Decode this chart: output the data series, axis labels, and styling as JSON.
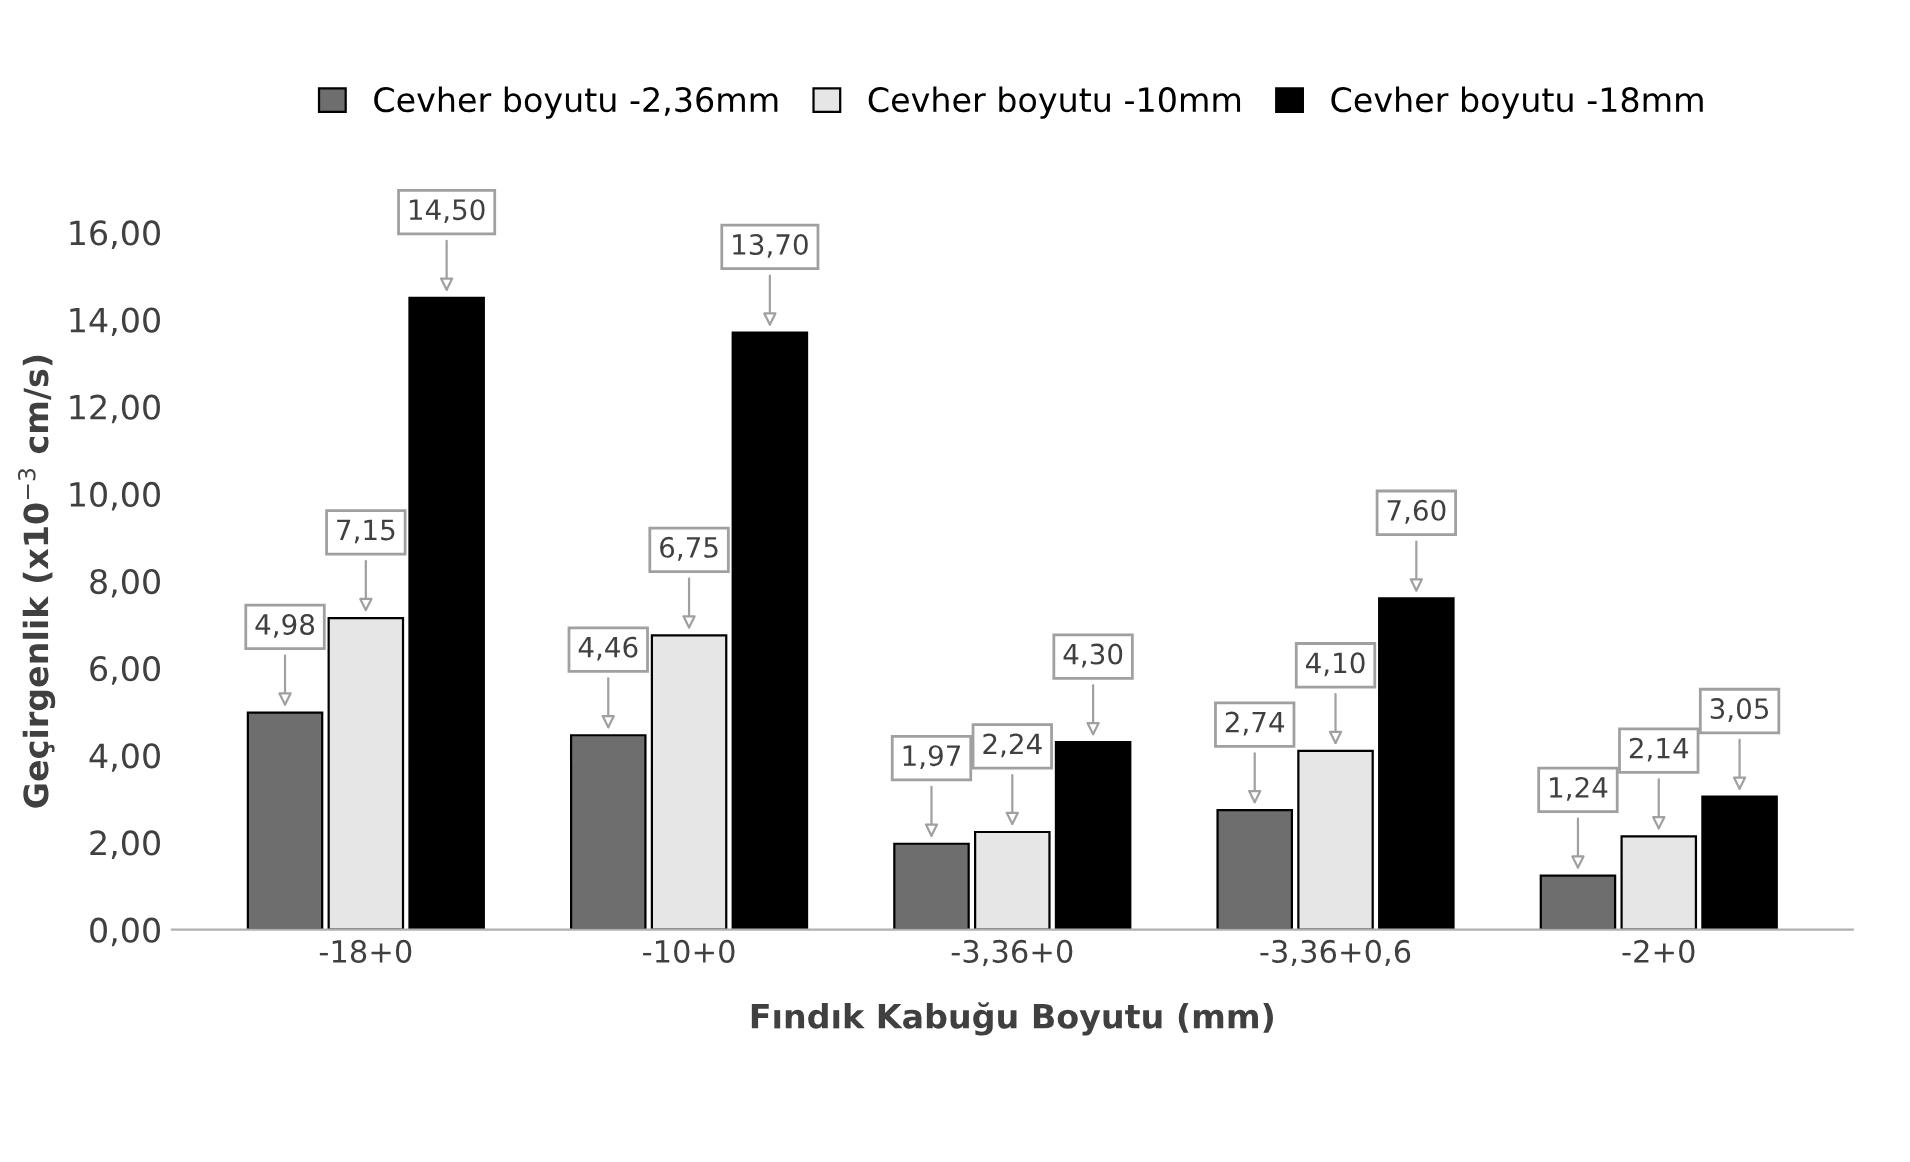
{
  "chart_data": {
    "type": "bar",
    "xlabel": "Fındık Kabuğu Boyutu (mm)",
    "ylabel": "Geçirgenlik (x10$^{−3}$ cm/s)",
    "categories": [
      "-18+0",
      "-10+0",
      "-3,36+0",
      "-3,36+0,6",
      "-2+0"
    ],
    "series": [
      {
        "name": "Cevher boyutu -2,36mm",
        "color": "#6e6e6e",
        "values": [
          4.98,
          4.46,
          1.97,
          2.74,
          1.24
        ],
        "value_labels": [
          "4,98",
          "4,46",
          "1,97",
          "2,74",
          "1,24"
        ]
      },
      {
        "name": "Cevher boyutu -10mm",
        "color": "#e6e6e6",
        "values": [
          7.15,
          6.75,
          2.24,
          4.1,
          2.14
        ],
        "value_labels": [
          "7,15",
          "6,75",
          "2,24",
          "4,10",
          "2,14"
        ]
      },
      {
        "name": "Cevher boyutu -18mm",
        "color": "#000000",
        "values": [
          14.5,
          13.7,
          4.3,
          7.6,
          3.05
        ],
        "value_labels": [
          "14,50",
          "13,70",
          "4,30",
          "7,60",
          "3,05"
        ]
      }
    ],
    "ylim": [
      0,
      16
    ],
    "yticks": [
      {
        "value": 0,
        "label": "0,00"
      },
      {
        "value": 2,
        "label": "2,00"
      },
      {
        "value": 4,
        "label": "4,00"
      },
      {
        "value": 6,
        "label": "6,00"
      },
      {
        "value": 8,
        "label": "8,00"
      },
      {
        "value": 10,
        "label": "10,00"
      },
      {
        "value": 12,
        "label": "12,00"
      },
      {
        "value": 14,
        "label": "14,00"
      },
      {
        "value": 16,
        "label": "16,00"
      }
    ],
    "grid": false,
    "legend": "top"
  }
}
